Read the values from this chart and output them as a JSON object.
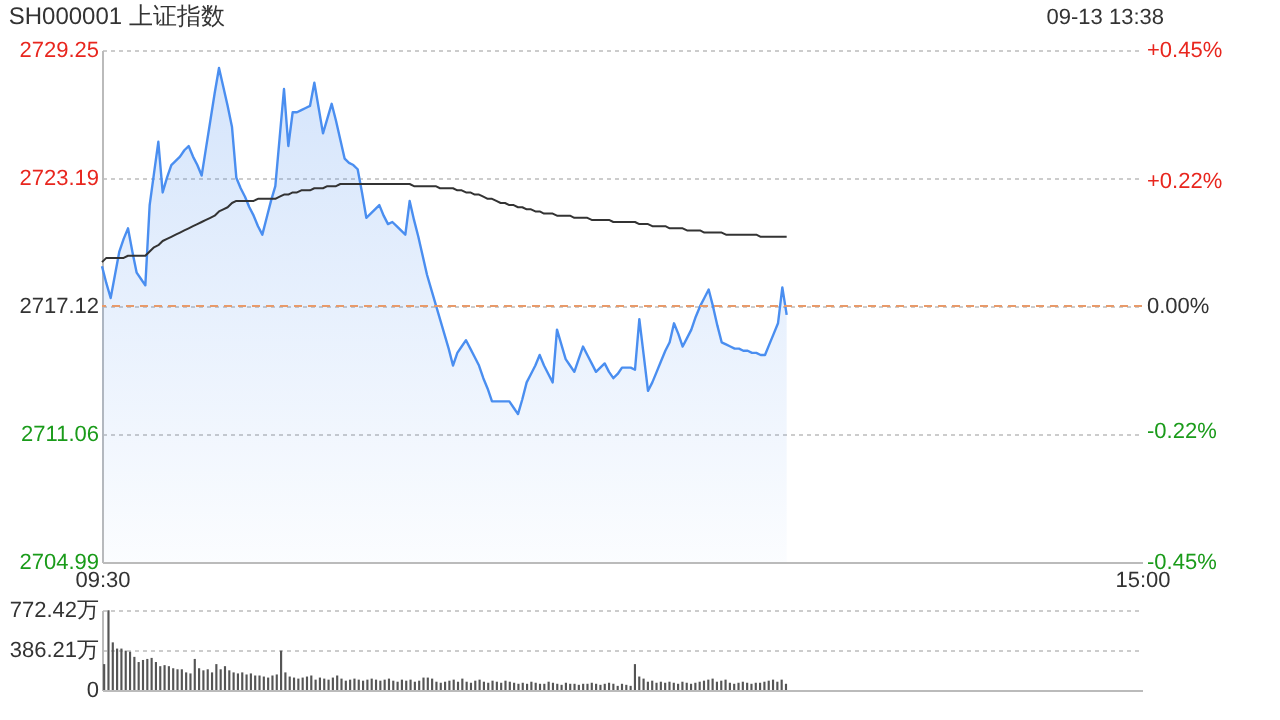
{
  "chart_data": [
    {
      "type": "area",
      "title": "SH000001 上证指数",
      "annotations": [
        "09-13 13:38"
      ],
      "categories": [
        "09:30",
        null,
        null,
        null,
        null,
        null,
        null,
        null,
        null,
        null,
        null,
        null,
        null,
        null,
        null,
        null,
        null,
        null,
        null,
        null,
        null,
        null,
        null,
        null,
        null,
        null,
        null,
        null,
        null,
        null,
        null,
        null,
        null,
        null,
        null,
        null,
        null,
        null,
        null,
        null,
        null,
        null,
        null,
        null,
        null,
        null,
        null,
        null,
        null,
        null,
        null,
        null,
        null,
        null,
        null,
        null,
        null,
        null,
        null,
        null,
        null,
        null,
        null,
        null,
        null,
        null,
        null,
        null,
        null,
        null,
        null,
        null,
        null,
        null,
        null,
        null,
        null,
        null,
        null,
        null,
        null,
        null,
        null,
        null,
        null,
        null,
        null,
        null,
        null,
        null,
        null,
        null,
        null,
        null,
        null,
        null,
        null,
        null,
        null,
        null,
        null,
        null,
        null,
        null,
        null,
        null,
        null,
        null,
        null,
        null,
        null,
        null,
        null,
        null,
        null,
        null,
        null,
        null,
        null,
        null,
        null,
        null,
        null,
        null,
        null,
        null,
        null,
        null,
        null,
        null,
        null,
        null,
        null,
        null,
        null,
        null,
        null,
        null,
        null,
        null,
        null,
        null,
        null,
        null,
        null,
        null,
        null,
        null,
        null,
        null,
        null,
        null,
        null,
        null,
        null,
        null,
        null,
        null,
        null,
        null,
        null,
        null,
        null,
        null,
        null,
        null,
        null,
        null,
        null,
        null,
        null,
        null,
        null,
        null,
        null,
        null,
        null,
        null,
        null,
        null,
        null,
        null,
        null,
        null,
        null,
        null,
        null,
        null,
        null,
        null,
        null,
        null,
        null,
        null,
        null,
        null,
        null,
        null,
        null,
        null,
        null,
        null,
        null,
        null,
        null,
        null,
        null,
        null,
        null,
        null,
        null,
        null,
        null,
        null,
        null,
        null,
        null,
        null,
        null,
        null,
        null,
        null,
        null,
        null,
        null,
        null,
        null,
        null,
        null,
        null,
        null,
        null,
        null,
        null,
        null,
        null,
        null,
        null,
        null,
        null,
        "15:00"
      ],
      "ylim": [
        2704.99,
        2729.25
      ],
      "yticks": [
        2704.99,
        2711.06,
        2717.12,
        2723.19,
        2729.25
      ],
      "y2lim": [
        -0.45,
        0.45
      ],
      "y2ticks": [
        {
          "value": -0.45,
          "label": "-0.45%"
        },
        {
          "value": -0.22,
          "label": "-0.22%"
        },
        {
          "value": 0,
          "label": "0.00%"
        },
        {
          "value": 0.22,
          "label": "+0.22%"
        },
        {
          "value": 0.45,
          "label": "+0.45%"
        }
      ],
      "grid": "y",
      "marker": "none",
      "ref_lines": [
        {
          "axis": "y",
          "value": 2717.12,
          "color": "#e89a6a",
          "line_style": "dashed"
        }
      ],
      "series": [
        {
          "color": "#4a8ef0",
          "values": [
            2719.0,
            2718.2,
            2717.5,
            2718.6,
            2719.7,
            2720.3,
            2720.8,
            2719.7,
            2718.7,
            2718.4,
            2718.1,
            2721.9,
            2723.4,
            2724.9,
            2722.5,
            2723.2,
            2723.8,
            2724.0,
            2724.2,
            2724.5,
            2724.7,
            2724.2,
            2723.8,
            2723.3,
            2724.6,
            2725.9,
            2727.2,
            2728.4,
            2727.5,
            2726.6,
            2725.6,
            2723.2,
            2722.7,
            2722.3,
            2721.8,
            2721.4,
            2720.9,
            2720.5,
            2721.3,
            2722.1,
            2722.8,
            2725.1,
            2727.4,
            2724.7,
            2726.3,
            2726.3,
            2726.4,
            2726.5,
            2726.6,
            2727.7,
            2726.5,
            2725.3,
            2726.0,
            2726.7,
            2725.9,
            2725.0,
            2724.1,
            2723.9,
            2723.8,
            2723.6,
            2722.5,
            2721.3,
            2721.5,
            2721.7,
            2721.9,
            2721.4,
            2721.0,
            2721.1,
            2720.9,
            2720.7,
            2720.5,
            2722.1,
            2721.2,
            2720.4,
            2719.5,
            2718.6,
            2717.9,
            2717.2,
            2716.5,
            2715.8,
            2715.1,
            2714.3,
            2714.9,
            2715.2,
            2715.5,
            2715.1,
            2714.7,
            2714.3,
            2713.7,
            2713.2,
            2712.6,
            2712.6,
            2712.6,
            2712.6,
            2712.6,
            2712.3,
            2712.0,
            2712.7,
            2713.5,
            2713.9,
            2714.3,
            2714.8,
            2714.3,
            2713.9,
            2713.5,
            2716.0,
            2715.3,
            2714.6,
            2714.3,
            2714.0,
            2714.6,
            2715.2,
            2714.8,
            2714.4,
            2714.0,
            2714.2,
            2714.4,
            2714.0,
            2713.7,
            2713.9,
            2714.2,
            2714.2,
            2714.2,
            2714.1,
            2716.5,
            2714.8,
            2713.1,
            2713.5,
            2714.0,
            2714.5,
            2715.0,
            2715.4,
            2716.3,
            2715.8,
            2715.2,
            2715.6,
            2716.0,
            2716.6,
            2717.1,
            2717.5,
            2717.9,
            2717.1,
            2716.2,
            2715.4,
            2715.3,
            2715.2,
            2715.1,
            2715.1,
            2715.0,
            2715.0,
            2714.9,
            2714.9,
            2714.8,
            2714.8,
            2715.3,
            2715.8,
            2716.3,
            2718.0,
            2716.7,
            null,
            null,
            null,
            null,
            null,
            null,
            null,
            null,
            null,
            null,
            null,
            null,
            null,
            null,
            null,
            null,
            null,
            null,
            null,
            null,
            null,
            null,
            null,
            null,
            null,
            null,
            null,
            null,
            null,
            null,
            null,
            null,
            null,
            null,
            null,
            null,
            null,
            null,
            null,
            null,
            null,
            null,
            null,
            null,
            null,
            null,
            null,
            null,
            null,
            null,
            null,
            null,
            null,
            null,
            null,
            null,
            null,
            null,
            null,
            null,
            null,
            null,
            null,
            null,
            null,
            null,
            null,
            null,
            null,
            null,
            null,
            null,
            null,
            null,
            null,
            null,
            null,
            null,
            null,
            null,
            null,
            null
          ]
        },
        {
          "type": "line",
          "color": "#333333",
          "values": [
            2719.2,
            2719.4,
            2719.4,
            2719.4,
            2719.4,
            2719.4,
            2719.5,
            2719.5,
            2719.5,
            2719.5,
            2719.5,
            2719.7,
            2719.9,
            2720.0,
            2720.2,
            2720.3,
            2720.4,
            2720.5,
            2720.6,
            2720.7,
            2720.8,
            2720.9,
            2721.0,
            2721.1,
            2721.2,
            2721.3,
            2721.4,
            2721.6,
            2721.7,
            2721.8,
            2722.0,
            2722.1,
            2722.1,
            2722.1,
            2722.1,
            2722.1,
            2722.2,
            2722.2,
            2722.2,
            2722.2,
            2722.2,
            2722.3,
            2722.4,
            2722.4,
            2722.5,
            2722.5,
            2722.6,
            2722.6,
            2722.6,
            2722.7,
            2722.7,
            2722.7,
            2722.8,
            2722.8,
            2722.8,
            2722.9,
            2722.9,
            2722.9,
            2722.9,
            2722.9,
            2722.9,
            2722.9,
            2722.9,
            2722.9,
            2722.9,
            2722.9,
            2722.9,
            2722.9,
            2722.9,
            2722.9,
            2722.9,
            2722.9,
            2722.8,
            2722.8,
            2722.8,
            2722.8,
            2722.8,
            2722.8,
            2722.7,
            2722.7,
            2722.7,
            2722.7,
            2722.6,
            2722.6,
            2722.5,
            2722.5,
            2722.4,
            2722.4,
            2722.3,
            2722.2,
            2722.2,
            2722.1,
            2722.0,
            2722.0,
            2721.9,
            2721.9,
            2721.8,
            2721.8,
            2721.7,
            2721.7,
            2721.6,
            2721.6,
            2721.5,
            2721.5,
            2721.5,
            2721.4,
            2721.4,
            2721.4,
            2721.4,
            2721.3,
            2721.3,
            2721.3,
            2721.3,
            2721.2,
            2721.2,
            2721.2,
            2721.2,
            2721.2,
            2721.1,
            2721.1,
            2721.1,
            2721.1,
            2721.1,
            2721.1,
            2721.0,
            2721.0,
            2721.0,
            2720.9,
            2720.9,
            2720.9,
            2720.9,
            2720.8,
            2720.8,
            2720.8,
            2720.8,
            2720.7,
            2720.7,
            2720.7,
            2720.7,
            2720.6,
            2720.6,
            2720.6,
            2720.6,
            2720.6,
            2720.5,
            2720.5,
            2720.5,
            2720.5,
            2720.5,
            2720.5,
            2720.5,
            2720.5,
            2720.4,
            2720.4,
            2720.4,
            2720.4,
            2720.4,
            2720.4,
            2720.4,
            null,
            null,
            null,
            null,
            null,
            null,
            null,
            null,
            null,
            null,
            null,
            null,
            null,
            null,
            null,
            null,
            null,
            null,
            null,
            null,
            null,
            null,
            null,
            null,
            null,
            null,
            null,
            null,
            null,
            null,
            null,
            null,
            null,
            null,
            null,
            null,
            null,
            null,
            null,
            null,
            null,
            null,
            null,
            null,
            null,
            null,
            null,
            null,
            null,
            null,
            null,
            null,
            null,
            null,
            null,
            null,
            null,
            null,
            null,
            null,
            null,
            null,
            null,
            null,
            null,
            null,
            null,
            null,
            null,
            null,
            null,
            null,
            null,
            null,
            null,
            null,
            null,
            null,
            null,
            null,
            null,
            null
          ]
        }
      ]
    },
    {
      "type": "bar",
      "categories": [
        null,
        null,
        null,
        null,
        null,
        null,
        null,
        null,
        null,
        null,
        null,
        null,
        null,
        null,
        null,
        null,
        null,
        null,
        null,
        null,
        null,
        null,
        null,
        null,
        null,
        null,
        null,
        null,
        null,
        null,
        null,
        null,
        null,
        null,
        null,
        null,
        null,
        null,
        null,
        null,
        null,
        null,
        null,
        null,
        null,
        null,
        null,
        null,
        null,
        null,
        null,
        null,
        null,
        null,
        null,
        null,
        null,
        null,
        null,
        null,
        null,
        null,
        null,
        null,
        null,
        null,
        null,
        null,
        null,
        null,
        null,
        null,
        null,
        null,
        null,
        null,
        null,
        null,
        null,
        null,
        null,
        null,
        null,
        null,
        null,
        null,
        null,
        null,
        null,
        null,
        null,
        null,
        null,
        null,
        null,
        null,
        null,
        null,
        null,
        null,
        null,
        null,
        null,
        null,
        null,
        null,
        null,
        null,
        null,
        null,
        null,
        null,
        null,
        null,
        null,
        null,
        null,
        null,
        null,
        null,
        null,
        null,
        null,
        null,
        null,
        null,
        null,
        null,
        null,
        null,
        null,
        null,
        null,
        null,
        null,
        null,
        null,
        null,
        null,
        null,
        null,
        null,
        null,
        null,
        null,
        null,
        null,
        null,
        null,
        null,
        null,
        null,
        null,
        null,
        null,
        null,
        null,
        null,
        null,
        null,
        null,
        null,
        null,
        null,
        null,
        null,
        null,
        null,
        null,
        null,
        null,
        null,
        null,
        null,
        null,
        null,
        null,
        null,
        null,
        null,
        null,
        null,
        null,
        null,
        null,
        null,
        null,
        null,
        null,
        null,
        null,
        null,
        null,
        null,
        null,
        null,
        null,
        null,
        null,
        null,
        null,
        null,
        null,
        null,
        null,
        null,
        null,
        null,
        null,
        null,
        null,
        null,
        null,
        null,
        null,
        null,
        null,
        null,
        null,
        null,
        null,
        null,
        null,
        null,
        null,
        null,
        null,
        null,
        null,
        null,
        null,
        null,
        null,
        null,
        null,
        null,
        null,
        null,
        null,
        null,
        null
      ],
      "ylim": [
        0,
        772.42
      ],
      "yticks": [
        0,
        {
          "value": 386.21,
          "label": "386.21万"
        },
        {
          "value": 772.42,
          "label": "772.42万"
        }
      ],
      "tick_labels": "y",
      "grid": "y",
      "series": [
        {
          "color": "#555555",
          "values": [
            250,
            770,
            460,
            400,
            400,
            380,
            370,
            320,
            270,
            290,
            300,
            310,
            270,
            230,
            240,
            230,
            210,
            200,
            200,
            170,
            160,
            300,
            210,
            190,
            200,
            170,
            250,
            200,
            230,
            190,
            170,
            160,
            170,
            150,
            160,
            140,
            140,
            130,
            120,
            140,
            150,
            380,
            170,
            130,
            120,
            110,
            120,
            130,
            140,
            100,
            120,
            110,
            100,
            120,
            140,
            110,
            90,
            100,
            110,
            100,
            90,
            100,
            110,
            100,
            90,
            100,
            110,
            90,
            80,
            100,
            90,
            100,
            80,
            90,
            120,
            120,
            110,
            80,
            70,
            80,
            90,
            100,
            80,
            110,
            80,
            70,
            90,
            100,
            80,
            70,
            90,
            80,
            70,
            90,
            80,
            70,
            60,
            70,
            60,
            80,
            70,
            60,
            60,
            80,
            70,
            60,
            50,
            70,
            60,
            60,
            50,
            60,
            60,
            70,
            60,
            50,
            60,
            70,
            60,
            40,
            60,
            50,
            40,
            250,
            130,
            110,
            80,
            90,
            70,
            80,
            70,
            80,
            70,
            60,
            80,
            70,
            60,
            70,
            80,
            90,
            100,
            110,
            80,
            90,
            100,
            70,
            60,
            70,
            80,
            70,
            60,
            70,
            70,
            80,
            90,
            100,
            80,
            100,
            60,
            null,
            null,
            null,
            null,
            null,
            null,
            null,
            null,
            null,
            null,
            null,
            null,
            null,
            null,
            null,
            null,
            null,
            null,
            null,
            null,
            null,
            null,
            null,
            null,
            null,
            null,
            null,
            null,
            null,
            null,
            null,
            null,
            null,
            null,
            null,
            null,
            null,
            null,
            null,
            null,
            null,
            null,
            null,
            null,
            null,
            null,
            null,
            null,
            null,
            null,
            null,
            null,
            null,
            null,
            null,
            null,
            null,
            null,
            null,
            null,
            null,
            null,
            null,
            null,
            null,
            null,
            null,
            null,
            null,
            null,
            null,
            null,
            null,
            null,
            null,
            null,
            null,
            null,
            null,
            null,
            null,
            null
          ]
        }
      ]
    }
  ]
}
